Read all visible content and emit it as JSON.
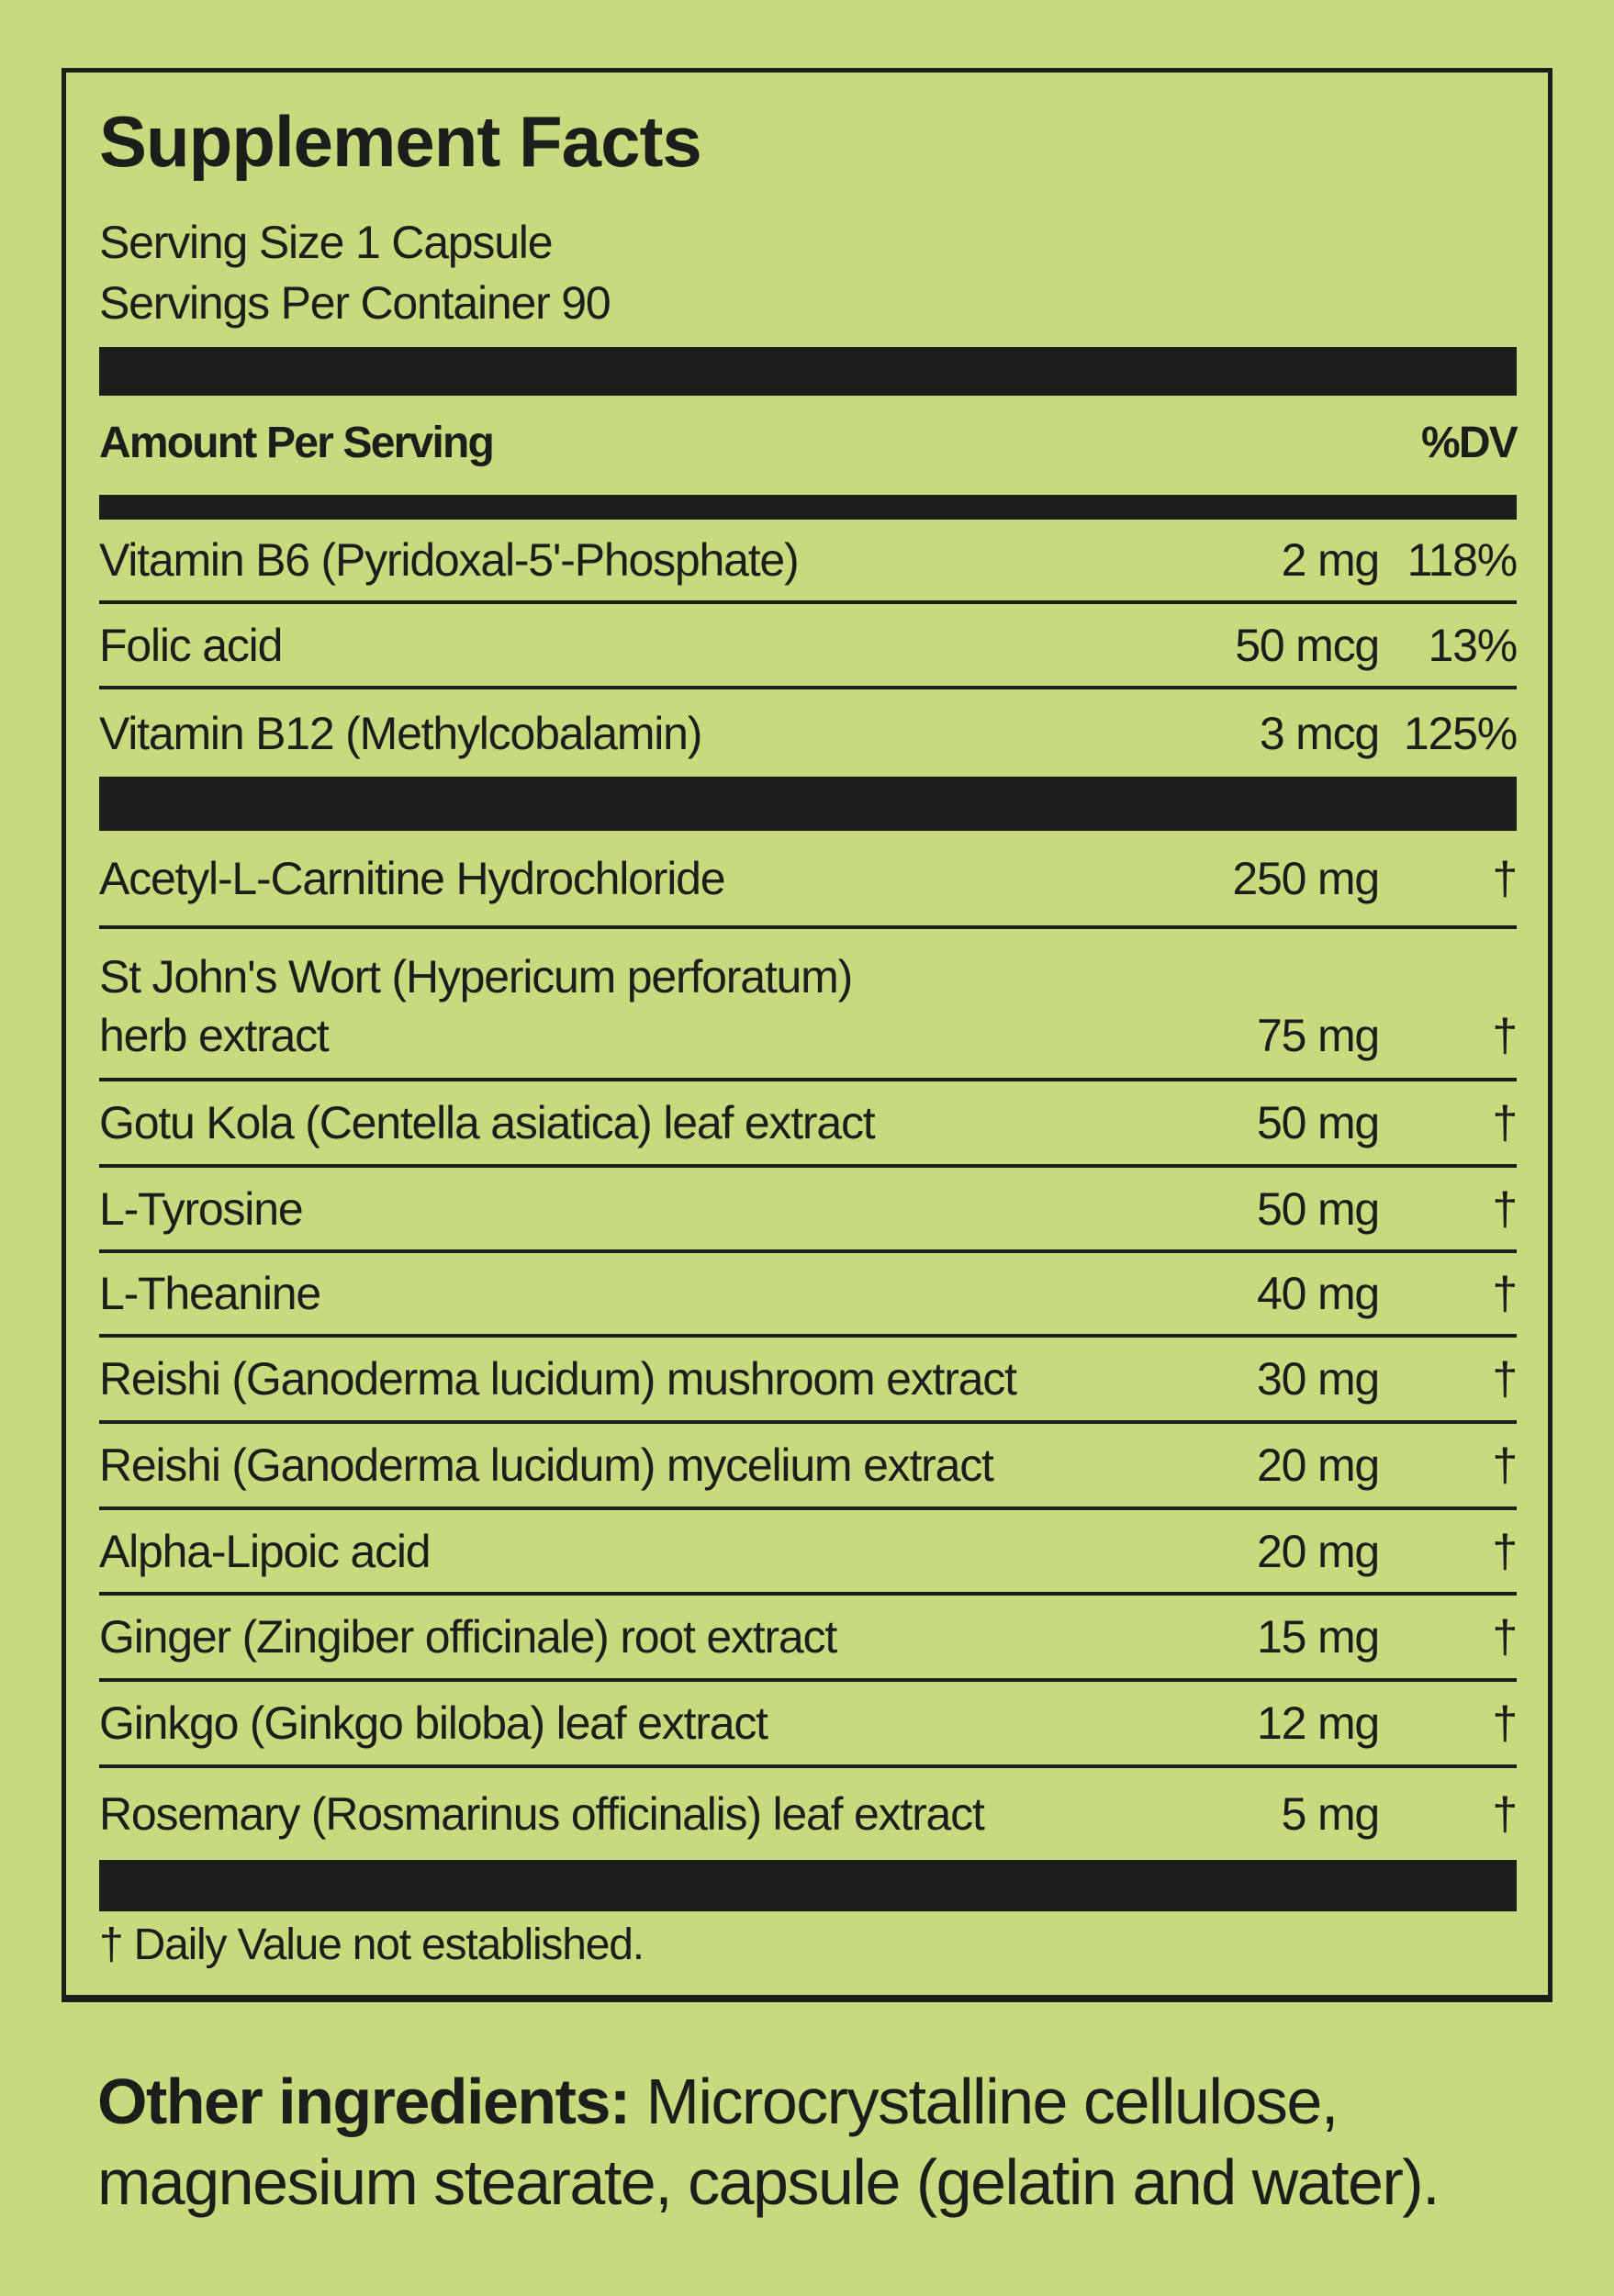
{
  "title": "Supplement Facts",
  "serving_size": "Serving Size 1 Capsule",
  "servings_per_container": "Servings Per Container 90",
  "header": {
    "amount": "Amount Per Serving",
    "dv": "%DV"
  },
  "vitamins": [
    {
      "name": "Vitamin B6 (Pyridoxal-5'-Phosphate)",
      "amount": "2 mg",
      "dv": "118%"
    },
    {
      "name": "Folic acid",
      "amount": "50 mcg",
      "dv": "13%"
    },
    {
      "name": "Vitamin B12 (Methylcobalamin)",
      "amount": "3 mcg",
      "dv": "125%"
    }
  ],
  "ingredients": [
    {
      "name": "Acetyl-L-Carnitine Hydrochloride",
      "amount": "250 mg",
      "dv": "†"
    },
    {
      "name": "St John's Wort (Hypericum perforatum)",
      "name2": "herb extract",
      "amount": "75 mg",
      "dv": "†"
    },
    {
      "name": "Gotu Kola (Centella asiatica) leaf extract",
      "amount": "50 mg",
      "dv": "†"
    },
    {
      "name": "L-Tyrosine",
      "amount": "50 mg",
      "dv": "†"
    },
    {
      "name": "L-Theanine",
      "amount": "40 mg",
      "dv": "†"
    },
    {
      "name": "Reishi (Ganoderma lucidum) mushroom extract",
      "amount": "30 mg",
      "dv": "†"
    },
    {
      "name": "Reishi (Ganoderma lucidum) mycelium extract",
      "amount": "20 mg",
      "dv": "†"
    },
    {
      "name": "Alpha-Lipoic acid",
      "amount": "20 mg",
      "dv": "†"
    },
    {
      "name": "Ginger (Zingiber officinale) root extract",
      "amount": "15 mg",
      "dv": "†"
    },
    {
      "name": "Ginkgo (Ginkgo biloba) leaf extract",
      "amount": "12 mg",
      "dv": "†"
    },
    {
      "name": "Rosemary (Rosmarinus officinalis) leaf extract",
      "amount": "5 mg",
      "dv": "†"
    }
  ],
  "footnote": "† Daily Value not established.",
  "other_ingredients": {
    "label": "Other ingredients:",
    "text": " Microcrystalline cellulose, magnesium stearate, capsule (gelatin and water)."
  },
  "colors": {
    "background": "#c7da7d",
    "ink": "#1d1d1b"
  }
}
